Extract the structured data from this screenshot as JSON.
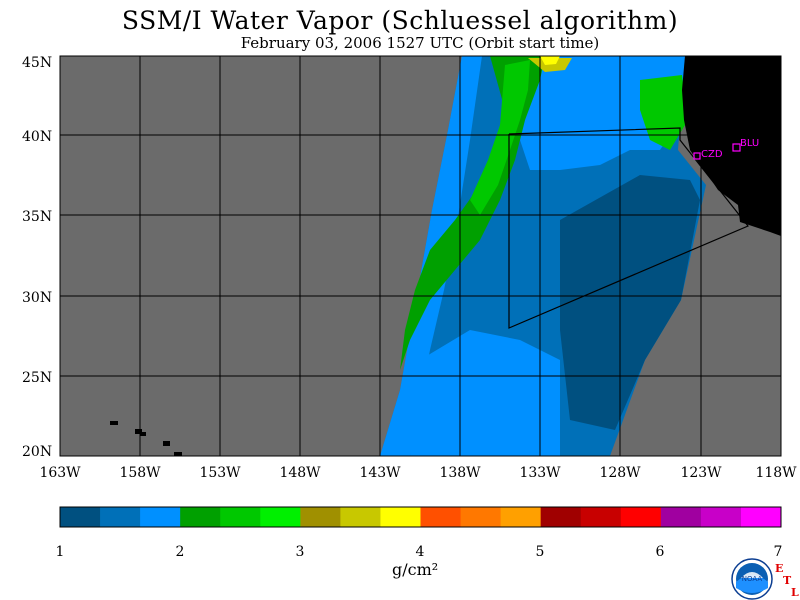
{
  "header": {
    "title": "SSM/I Water Vapor (Schluessel algorithm)",
    "subtitle": "February 03, 2006  1527 UTC  (Orbit start time)"
  },
  "map": {
    "lat_labels": [
      "45N",
      "40N",
      "35N",
      "30N",
      "25N",
      "20N"
    ],
    "lon_labels": [
      "163W",
      "158W",
      "153W",
      "148W",
      "143W",
      "138W",
      "133W",
      "128W",
      "123W",
      "118W"
    ],
    "stations": [
      "CZD",
      "BLU"
    ],
    "colors": {
      "nodata": "#6b6b6b",
      "land": "#000000",
      "station": "#ff00ff",
      "grid": "#000000"
    }
  },
  "colorbar": {
    "tick_labels": [
      "1",
      "2",
      "3",
      "4",
      "5",
      "6",
      "7"
    ],
    "unit": "g/cm²",
    "colors": [
      "#005080",
      "#0070b8",
      "#0090ff",
      "#00a000",
      "#00c800",
      "#00f000",
      "#a09000",
      "#c8c800",
      "#ffff00",
      "#ff5000",
      "#ff7800",
      "#ffa000",
      "#a00000",
      "#c80000",
      "#ff0000",
      "#a000a0",
      "#c800c8",
      "#ff00ff"
    ]
  },
  "logo": {
    "text": "NOAA",
    "lab_letters": [
      "E",
      "T",
      "L"
    ]
  }
}
